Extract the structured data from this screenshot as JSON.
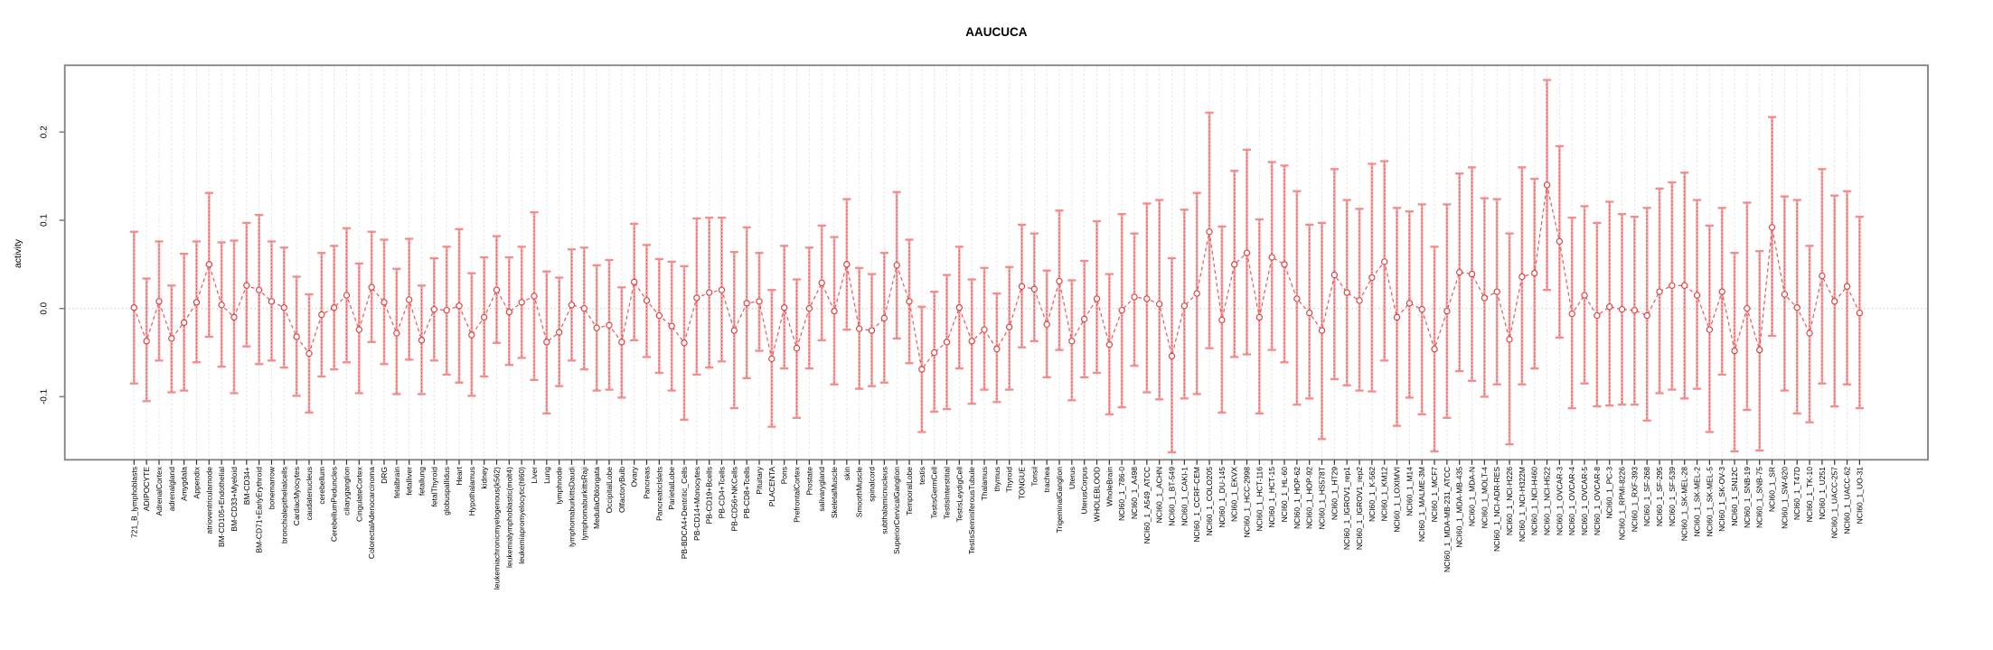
{
  "title": "AAUCUCA",
  "chart_data": {
    "type": "line",
    "subtype": "points-with-error-bars",
    "title": "AAUCUCA",
    "xlabel": "",
    "ylabel": "activity",
    "ylim": [
      -0.1715,
      0.2757
    ],
    "yticks": [
      0.2,
      0.1,
      0.0,
      -0.1
    ],
    "ytick_labels": [
      "0.2",
      "0.1",
      "0.0",
      "-0.1"
    ],
    "grid": "vertical dashed gridline per category; dotted horizontal line at y=0",
    "legend_position": "none",
    "series_name": "activity",
    "point_style": "open circle, dashed red connecting line, pink confidence-interval bars with caps",
    "colors": {
      "point_stroke": "#e43c3c",
      "series_dash_line": "#ee5b5b",
      "errorbar_fill": "#f7a2a2",
      "errorbar_cap": "#f58b8b",
      "errorbar_dotted_core": "#e84848",
      "gridline": "#e4e4e4",
      "zero_line": "#cfcfcf",
      "plot_border": "#808080",
      "tick": "#333333",
      "text": "#000000"
    },
    "categories": [
      "721_B_lymphoblasts",
      "ADIPOCYTE",
      "AdrenalCortex",
      "adrenalgland",
      "Amygdala",
      "Appendix",
      "atrioventricularnode",
      "BM-CD105+Endothelial",
      "BM-CD33+Myeloid",
      "BM-CD34+",
      "BM-CD71+EarlyErythroid",
      "bonemarrow",
      "bronchialepithelialcells",
      "CardiacMyocytes",
      "caudatenucleus",
      "cerebellum",
      "CerebellumPeduncles",
      "ciliaryganglion",
      "CingulateCortex",
      "ColorectalAdenocarcinoma",
      "DRG",
      "fetalbrain",
      "fetalliver",
      "fetallung",
      "fetalThyroid",
      "globuspallidus",
      "Heart",
      "Hypothalamus",
      "kidney",
      "leukemiachronicmyelogenous(k562)",
      "leukemialymphoblastic(molt4)",
      "leukemiapromyelocytic(hl60)",
      "Liver",
      "Lung",
      "lymphnode",
      "lymphomaburkittsDaudi",
      "lymphomaburkittsRaji",
      "MedullaOblongata",
      "OccipitalLobe",
      "OlfactoryBulb",
      "Ovary",
      "Pancreas",
      "PancreaticIslets",
      "ParietalLobe",
      "PB-BDCA4+Dentritic_Cells",
      "PB-CD14+Monocytes",
      "PB-CD19+Bcells",
      "PB-CD4+Tcells",
      "PB-CD56+NKCells",
      "PB-CD8+Tcells",
      "Pituitary",
      "PLACENTA",
      "Pons",
      "PrefrontalCortex",
      "Prostate",
      "salivarygland",
      "SkeletalMuscle",
      "skin",
      "SmoothMuscle",
      "spinalcord",
      "subthalamicnucleus",
      "SuperiorCervicalGanglion",
      "TemporalLobe",
      "testis",
      "TestisGermCell",
      "TestisInterstitial",
      "TestisLeydigCell",
      "TestisSeminiferousTubule",
      "Thalamus",
      "thymus",
      "Thyroid",
      "TONGUE",
      "Tonsil",
      "trachea",
      "TrigeminalGanglion",
      "Uterus",
      "UterusCorpus",
      "WHOLEBLOOD",
      "WholeBrain",
      "NCI60_1_786-0",
      "NCI60_1_A498",
      "NCI60_1_A549_ATCC",
      "NCI60_1_ACHN",
      "NCI60_1_BT-549",
      "NCI60_1_CAKI-1",
      "NCI60_1_CCRF-CEM",
      "NCI60_1_COLO205",
      "NCI60_1_DU-145",
      "NCI60_1_EKVX",
      "NCI60_1_HCC-2998",
      "NCI60_1_HCT-116",
      "NCI60_1_HCT-15",
      "NCI60_1_HL-60",
      "NCI60_1_HOP-62",
      "NCI60_1_HOP-92",
      "NCI60_1_HS578T",
      "NCI60_1_HT29",
      "NCI60_1_IGROV1_rep1",
      "NCI60_1_IGROV1_rep2",
      "NCI60_1_K-562",
      "NCI60_1_KM12",
      "NCI60_1_LOXIMVI",
      "NCI60_1_M14",
      "NCI60_1_MALME-3M",
      "NCI60_1_MCF7",
      "NCI60_1_MDA-MB-231_ATCC",
      "NCI60_1_MDA-MB-435",
      "NCI60_1_MDA-N",
      "NCI60_1_MOLT-4",
      "NCI60_1_NCI-ADR-RES",
      "NCI60_1_NCI-H226",
      "NCI60_1_NCI-H322M",
      "NCI60_1_NCI-H460",
      "NCI60_1_NCI-H522",
      "NCI60_1_OVCAR-3",
      "NCI60_1_OVCAR-4",
      "NCI60_1_OVCAR-5",
      "NCI60_1_OVCAR-8",
      "NCI60_1_PC-3",
      "NCI60_1_RPMI-8226",
      "NCI60_1_RXF-393",
      "NCI60_1_SF-268",
      "NCI60_1_SF-295",
      "NCI60_1_SF-539",
      "NCI60_1_SK-MEL-28",
      "NCI60_1_SK-MEL-2",
      "NCI60_1_SK-MEL-5",
      "NCI60_1_SK-OV-3",
      "NCI60_1_SN12C",
      "NCI60_1_SNB-19",
      "NCI60_1_SNB-75",
      "NCI60_1_SR",
      "NCI60_1_SW-620",
      "NCI60_1_T47D",
      "NCI60_1_TK-10",
      "NCI60_1_U251",
      "NCI60_1_UACC-257",
      "NCI60_1_UACC-62",
      "NCI60_1_UO-31"
    ],
    "values": [
      0.001,
      -0.037,
      0.008,
      -0.034,
      -0.016,
      0.007,
      0.05,
      0.004,
      -0.01,
      0.026,
      0.021,
      0.008,
      0.001,
      -0.032,
      -0.051,
      -0.007,
      0.001,
      0.015,
      -0.024,
      0.024,
      0.007,
      -0.028,
      0.01,
      -0.036,
      -0.001,
      -0.002,
      0.003,
      -0.03,
      -0.01,
      0.021,
      -0.004,
      0.007,
      0.014,
      -0.038,
      -0.027,
      0.004,
      0.0,
      -0.022,
      -0.019,
      -0.038,
      0.03,
      0.009,
      -0.008,
      -0.02,
      -0.039,
      0.012,
      0.018,
      0.021,
      -0.025,
      0.006,
      0.008,
      -0.057,
      0.001,
      -0.045,
      0.0,
      0.029,
      -0.003,
      0.05,
      -0.023,
      -0.025,
      -0.011,
      0.049,
      0.008,
      -0.069,
      -0.05,
      -0.038,
      0.001,
      -0.037,
      -0.024,
      -0.046,
      -0.021,
      0.025,
      0.022,
      -0.018,
      0.031,
      -0.037,
      -0.012,
      0.011,
      -0.041,
      -0.002,
      0.013,
      0.011,
      0.005,
      -0.054,
      0.003,
      0.017,
      0.087,
      -0.013,
      0.05,
      0.063,
      -0.01,
      0.058,
      0.05,
      0.011,
      -0.005,
      -0.025,
      0.038,
      0.018,
      0.009,
      0.035,
      0.053,
      -0.01,
      0.006,
      -0.001,
      -0.046,
      -0.003,
      0.041,
      0.039,
      0.012,
      0.019,
      -0.035,
      0.036,
      0.04,
      0.14,
      0.076,
      -0.006,
      0.015,
      -0.008,
      0.002,
      -0.001,
      -0.002,
      -0.008,
      0.019,
      0.026,
      0.026,
      0.015,
      -0.024,
      0.019,
      -0.048,
      0.0,
      -0.047,
      0.092,
      0.016,
      0.001,
      -0.028,
      0.037,
      0.008,
      0.025,
      -0.005
    ],
    "lower": [
      -0.085,
      -0.105,
      -0.059,
      -0.095,
      -0.093,
      -0.061,
      -0.032,
      -0.066,
      -0.096,
      -0.043,
      -0.063,
      -0.059,
      -0.067,
      -0.099,
      -0.118,
      -0.077,
      -0.069,
      -0.061,
      -0.096,
      -0.038,
      -0.063,
      -0.097,
      -0.058,
      -0.097,
      -0.059,
      -0.075,
      -0.084,
      -0.099,
      -0.077,
      -0.039,
      -0.064,
      -0.056,
      -0.081,
      -0.119,
      -0.088,
      -0.059,
      -0.069,
      -0.093,
      -0.092,
      -0.101,
      -0.036,
      -0.055,
      -0.073,
      -0.093,
      -0.126,
      -0.075,
      -0.067,
      -0.06,
      -0.113,
      -0.079,
      -0.048,
      -0.134,
      -0.068,
      -0.124,
      -0.068,
      -0.036,
      -0.086,
      -0.024,
      -0.091,
      -0.088,
      -0.084,
      -0.034,
      -0.062,
      -0.14,
      -0.117,
      -0.114,
      -0.068,
      -0.108,
      -0.092,
      -0.106,
      -0.092,
      -0.044,
      -0.037,
      -0.078,
      -0.047,
      -0.104,
      -0.078,
      -0.073,
      -0.12,
      -0.112,
      -0.065,
      -0.095,
      -0.103,
      -0.163,
      -0.102,
      -0.097,
      -0.045,
      -0.118,
      -0.055,
      -0.052,
      -0.119,
      -0.047,
      -0.061,
      -0.109,
      -0.102,
      -0.148,
      -0.08,
      -0.087,
      -0.093,
      -0.094,
      -0.059,
      -0.133,
      -0.101,
      -0.12,
      -0.162,
      -0.124,
      -0.071,
      -0.082,
      -0.1,
      -0.086,
      -0.154,
      -0.086,
      -0.068,
      0.021,
      -0.033,
      -0.113,
      -0.085,
      -0.111,
      -0.11,
      -0.109,
      -0.109,
      -0.127,
      -0.096,
      -0.092,
      -0.102,
      -0.091,
      -0.14,
      -0.075,
      -0.162,
      -0.115,
      -0.161,
      -0.031,
      -0.093,
      -0.119,
      -0.129,
      -0.085,
      -0.111,
      -0.086,
      -0.113
    ],
    "upper": [
      0.087,
      0.034,
      0.076,
      0.026,
      0.062,
      0.076,
      0.131,
      0.075,
      0.077,
      0.097,
      0.106,
      0.076,
      0.069,
      0.036,
      0.016,
      0.063,
      0.071,
      0.091,
      0.051,
      0.087,
      0.078,
      0.045,
      0.079,
      0.026,
      0.057,
      0.07,
      0.09,
      0.04,
      0.058,
      0.082,
      0.058,
      0.07,
      0.109,
      0.042,
      0.035,
      0.067,
      0.069,
      0.049,
      0.055,
      0.024,
      0.096,
      0.072,
      0.056,
      0.053,
      0.048,
      0.102,
      0.103,
      0.103,
      0.064,
      0.092,
      0.063,
      0.021,
      0.071,
      0.033,
      0.069,
      0.094,
      0.081,
      0.124,
      0.046,
      0.039,
      0.063,
      0.132,
      0.078,
      0.002,
      0.019,
      0.038,
      0.07,
      0.033,
      0.046,
      0.017,
      0.047,
      0.095,
      0.085,
      0.043,
      0.111,
      0.032,
      0.054,
      0.099,
      0.039,
      0.107,
      0.085,
      0.119,
      0.123,
      0.057,
      0.112,
      0.131,
      0.222,
      0.093,
      0.156,
      0.18,
      0.101,
      0.166,
      0.162,
      0.133,
      0.095,
      0.097,
      0.158,
      0.123,
      0.113,
      0.164,
      0.167,
      0.114,
      0.11,
      0.118,
      0.07,
      0.118,
      0.153,
      0.16,
      0.125,
      0.124,
      0.085,
      0.16,
      0.147,
      0.259,
      0.184,
      0.103,
      0.116,
      0.097,
      0.121,
      0.107,
      0.104,
      0.114,
      0.136,
      0.143,
      0.154,
      0.123,
      0.094,
      0.114,
      0.063,
      0.12,
      0.065,
      0.217,
      0.127,
      0.123,
      0.071,
      0.158,
      0.128,
      0.133,
      0.104
    ]
  }
}
